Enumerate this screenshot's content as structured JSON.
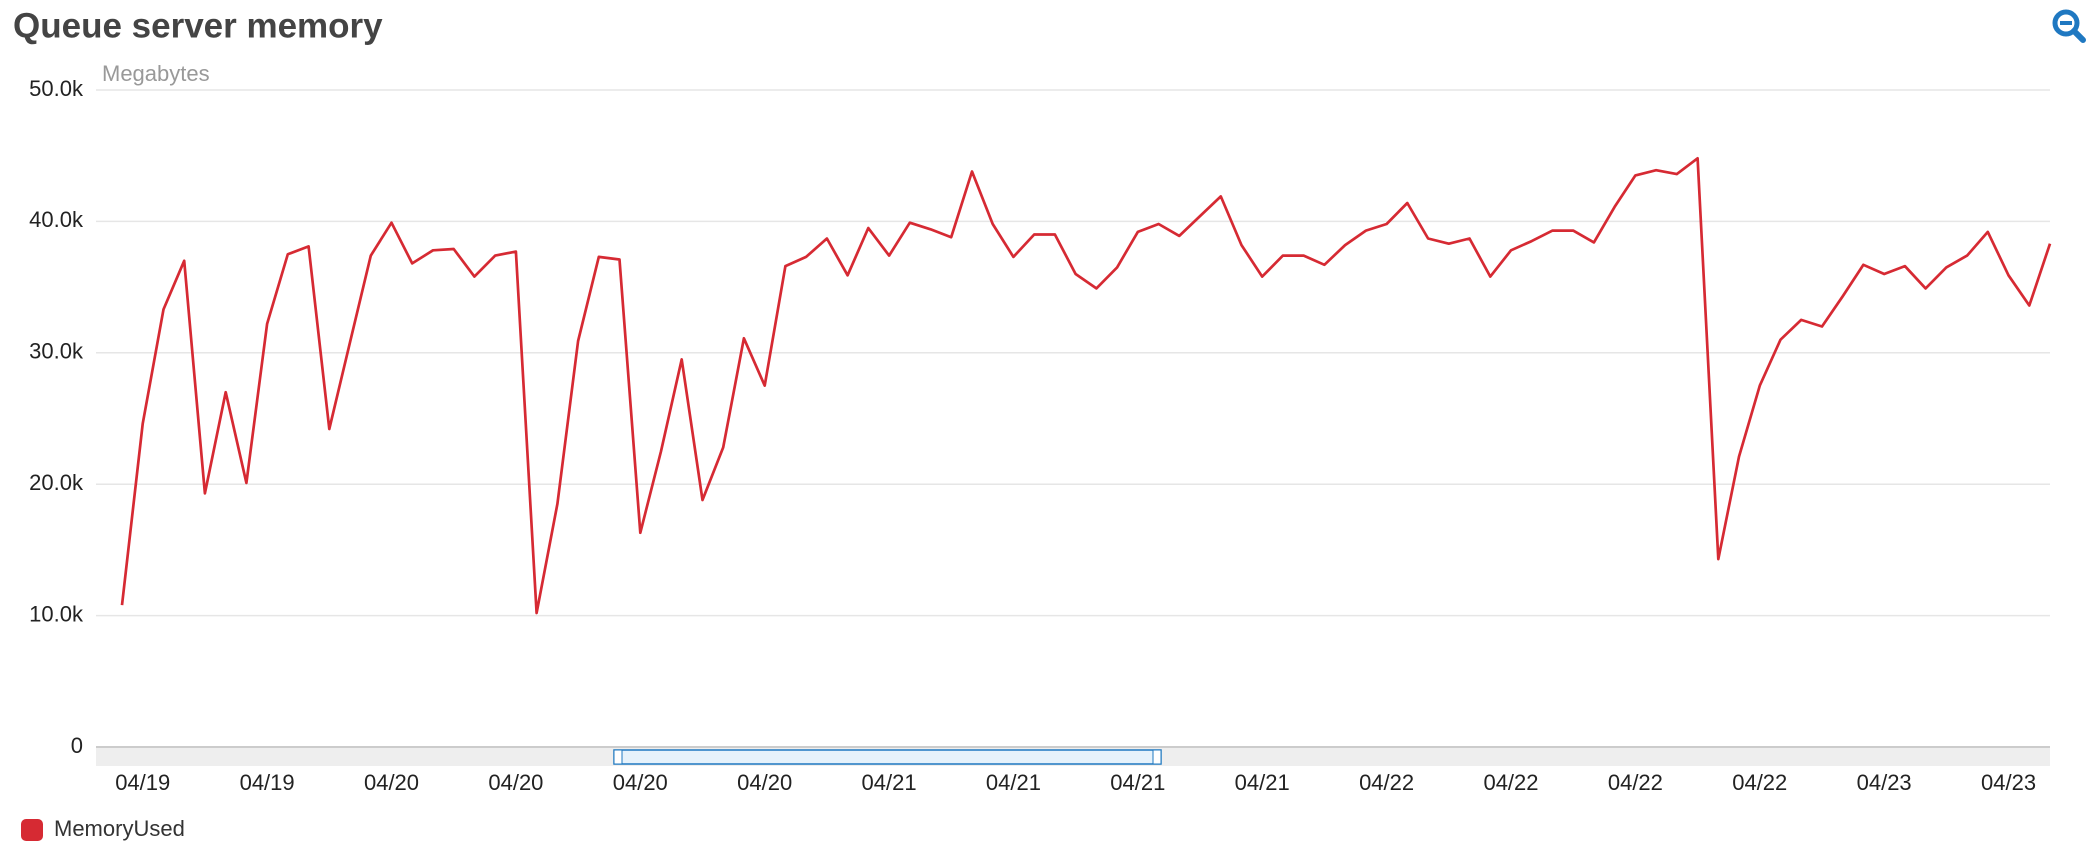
{
  "chart_data": {
    "type": "line",
    "title": "Queue server memory",
    "y_label": "Megabytes",
    "categories": [
      null,
      "04/19",
      null,
      null,
      null,
      null,
      null,
      "04/19",
      null,
      null,
      null,
      null,
      null,
      "04/20",
      null,
      null,
      null,
      null,
      null,
      "04/20",
      null,
      null,
      null,
      null,
      null,
      "04/20",
      null,
      null,
      null,
      null,
      null,
      "04/20",
      null,
      null,
      null,
      null,
      null,
      "04/21",
      null,
      null,
      null,
      null,
      null,
      "04/21",
      null,
      null,
      null,
      null,
      null,
      "04/21",
      null,
      null,
      null,
      null,
      null,
      "04/21",
      null,
      null,
      null,
      null,
      null,
      "04/22",
      null,
      null,
      null,
      null,
      null,
      "04/22",
      null,
      null,
      null,
      null,
      null,
      "04/22",
      null,
      null,
      null,
      null,
      null,
      "04/22",
      null,
      null,
      null,
      null,
      null,
      "04/23",
      null,
      null,
      null,
      null,
      null,
      "04/23",
      null,
      null
    ],
    "series": [
      {
        "name": "MemoryUsed",
        "color": "#d62a33",
        "values": [
          10800,
          24600,
          33300,
          37000,
          19300,
          27000,
          20100,
          32200,
          37500,
          38100,
          24200,
          30800,
          37400,
          39900,
          36800,
          37800,
          37900,
          35800,
          37400,
          37700,
          10200,
          18500,
          30900,
          37300,
          37100,
          16300,
          22500,
          29500,
          18800,
          22800,
          31100,
          27500,
          36600,
          37300,
          38700,
          35900,
          39500,
          37400,
          39900,
          39400,
          38800,
          43800,
          39800,
          37300,
          39000,
          39000,
          36000,
          34900,
          36500,
          39200,
          39800,
          38900,
          40400,
          41900,
          38200,
          35800,
          37400,
          37400,
          36700,
          38200,
          39300,
          39800,
          41400,
          38700,
          38300,
          38700,
          35800,
          37800,
          38500,
          39300,
          39300,
          38400,
          41100,
          43500,
          43900,
          43600,
          44800,
          14300,
          22100,
          27500,
          31000,
          32500,
          32000,
          34300,
          36700,
          36000,
          36600,
          34900,
          36500,
          37400,
          39200,
          35900,
          33600,
          38300
        ]
      }
    ],
    "ylim": [
      0,
      50000
    ],
    "yticks": [
      0,
      {
        "value": 10000,
        "label": "10.0k"
      },
      {
        "value": 20000,
        "label": "20.0k"
      },
      {
        "value": 30000,
        "label": "30.0k"
      },
      {
        "value": 40000,
        "label": "40.0k"
      },
      {
        "value": 50000,
        "label": "50.0k"
      }
    ],
    "grid": true,
    "legend": "bottom-left"
  }
}
